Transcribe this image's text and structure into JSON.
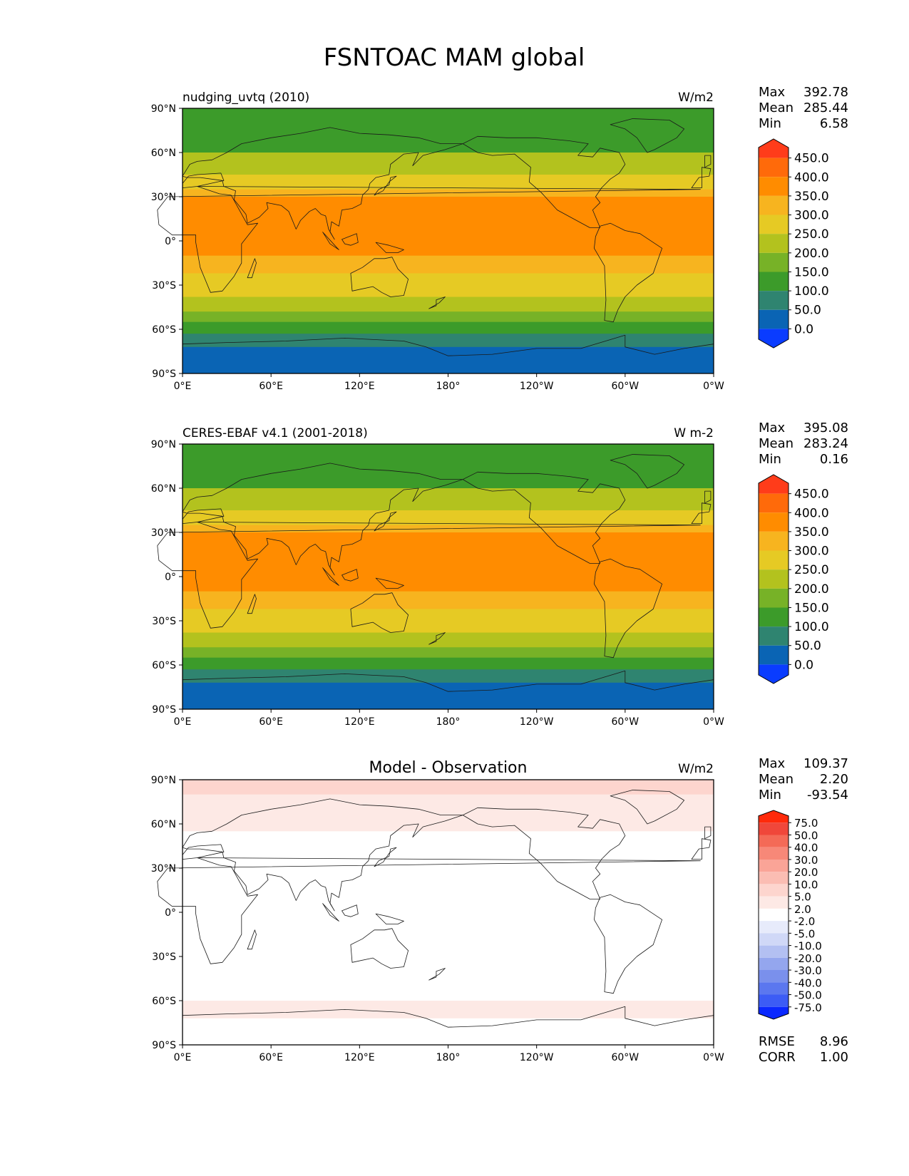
{
  "title": "FSNTOAC MAM global",
  "axes": {
    "lat_ticks": [
      "90°N",
      "60°N",
      "30°N",
      "0°",
      "30°S",
      "60°S",
      "90°S"
    ],
    "lon_ticks": [
      "0°E",
      "60°E",
      "120°E",
      "180°",
      "120°W",
      "60°W",
      "0°W"
    ]
  },
  "stat_labels": {
    "max": "Max",
    "mean": "Mean",
    "min": "Min",
    "rmse": "RMSE",
    "corr": "CORR"
  },
  "chart_data": [
    {
      "type": "heatmap",
      "left_title": "nudging_uvtq (2010)",
      "center_title": "",
      "units": "W/m2",
      "stats": {
        "max": "392.78",
        "mean": "285.44",
        "min": "6.58"
      },
      "xlim": [
        0,
        360
      ],
      "ylim": [
        -90,
        90
      ],
      "colorbar": {
        "levels": [
          "450.0",
          "400.0",
          "350.0",
          "300.0",
          "250.0",
          "200.0",
          "150.0",
          "100.0",
          "50.0",
          "0.0"
        ],
        "colors": [
          "#ff3c1a",
          "#ff6a0a",
          "#ff8c00",
          "#f7b41f",
          "#e6ca24",
          "#b3c21e",
          "#77b227",
          "#3c9b2a",
          "#2f8470",
          "#0a64b4",
          "#0a3cff"
        ]
      },
      "zonal_bands": [
        {
          "lat_range": [
            60,
            90
          ],
          "value": 125
        },
        {
          "lat_range": [
            45,
            60
          ],
          "value": 225
        },
        {
          "lat_range": [
            35,
            45
          ],
          "value": 275
        },
        {
          "lat_range": [
            30,
            35
          ],
          "value": 325
        },
        {
          "lat_range": [
            -10,
            30
          ],
          "value": 375
        },
        {
          "lat_range": [
            -22,
            -10
          ],
          "value": 325
        },
        {
          "lat_range": [
            -38,
            -22
          ],
          "value": 275
        },
        {
          "lat_range": [
            -48,
            -38
          ],
          "value": 225
        },
        {
          "lat_range": [
            -55,
            -48
          ],
          "value": 175
        },
        {
          "lat_range": [
            -63,
            -55
          ],
          "value": 125
        },
        {
          "lat_range": [
            -72,
            -63
          ],
          "value": 75
        },
        {
          "lat_range": [
            -90,
            -72
          ],
          "value": 25
        }
      ]
    },
    {
      "type": "heatmap",
      "left_title": "CERES-EBAF v4.1 (2001-2018)",
      "center_title": "",
      "units": "W m-2",
      "stats": {
        "max": "395.08",
        "mean": "283.24",
        "min": "0.16"
      },
      "xlim": [
        0,
        360
      ],
      "ylim": [
        -90,
        90
      ],
      "colorbar": {
        "levels": [
          "450.0",
          "400.0",
          "350.0",
          "300.0",
          "250.0",
          "200.0",
          "150.0",
          "100.0",
          "50.0",
          "0.0"
        ],
        "colors": [
          "#ff3c1a",
          "#ff6a0a",
          "#ff8c00",
          "#f7b41f",
          "#e6ca24",
          "#b3c21e",
          "#77b227",
          "#3c9b2a",
          "#2f8470",
          "#0a64b4",
          "#0a3cff"
        ]
      },
      "zonal_bands": [
        {
          "lat_range": [
            60,
            90
          ],
          "value": 125
        },
        {
          "lat_range": [
            45,
            60
          ],
          "value": 225
        },
        {
          "lat_range": [
            35,
            45
          ],
          "value": 275
        },
        {
          "lat_range": [
            30,
            35
          ],
          "value": 325
        },
        {
          "lat_range": [
            -10,
            30
          ],
          "value": 375
        },
        {
          "lat_range": [
            -22,
            -10
          ],
          "value": 325
        },
        {
          "lat_range": [
            -38,
            -22
          ],
          "value": 275
        },
        {
          "lat_range": [
            -48,
            -38
          ],
          "value": 225
        },
        {
          "lat_range": [
            -55,
            -48
          ],
          "value": 175
        },
        {
          "lat_range": [
            -63,
            -55
          ],
          "value": 125
        },
        {
          "lat_range": [
            -72,
            -63
          ],
          "value": 75
        },
        {
          "lat_range": [
            -90,
            -72
          ],
          "value": 25
        }
      ]
    },
    {
      "type": "heatmap",
      "left_title": "",
      "center_title": "Model - Observation",
      "units": "W/m2",
      "stats": {
        "max": "109.37",
        "mean": "2.20",
        "min": "-93.54",
        "rmse": "8.96",
        "corr": "1.00"
      },
      "xlim": [
        0,
        360
      ],
      "ylim": [
        -90,
        90
      ],
      "colorbar": {
        "levels": [
          "75.0",
          "50.0",
          "40.0",
          "30.0",
          "20.0",
          "10.0",
          "5.0",
          "2.0",
          "-2.0",
          "-5.0",
          "-10.0",
          "-20.0",
          "-30.0",
          "-40.0",
          "-50.0",
          "-75.0"
        ],
        "colors": [
          "#ff2a0a",
          "#f0473a",
          "#f46a57",
          "#f78878",
          "#faa497",
          "#fbbdb3",
          "#fdd5ce",
          "#fde9e5",
          "#ffffff",
          "#e7ebfb",
          "#d0d8f7",
          "#b3c0f2",
          "#94a6ee",
          "#7a90ec",
          "#5b77ef",
          "#3c5cf5",
          "#0a28ff"
        ]
      },
      "zonal_bands": [
        {
          "lat_range": [
            80,
            90
          ],
          "value": 6
        },
        {
          "lat_range": [
            55,
            80
          ],
          "value": 3
        },
        {
          "lat_range": [
            -60,
            55
          ],
          "value": 1
        },
        {
          "lat_range": [
            -72,
            -60
          ],
          "value": 3
        },
        {
          "lat_range": [
            -90,
            -72
          ],
          "value": 1
        }
      ]
    }
  ]
}
